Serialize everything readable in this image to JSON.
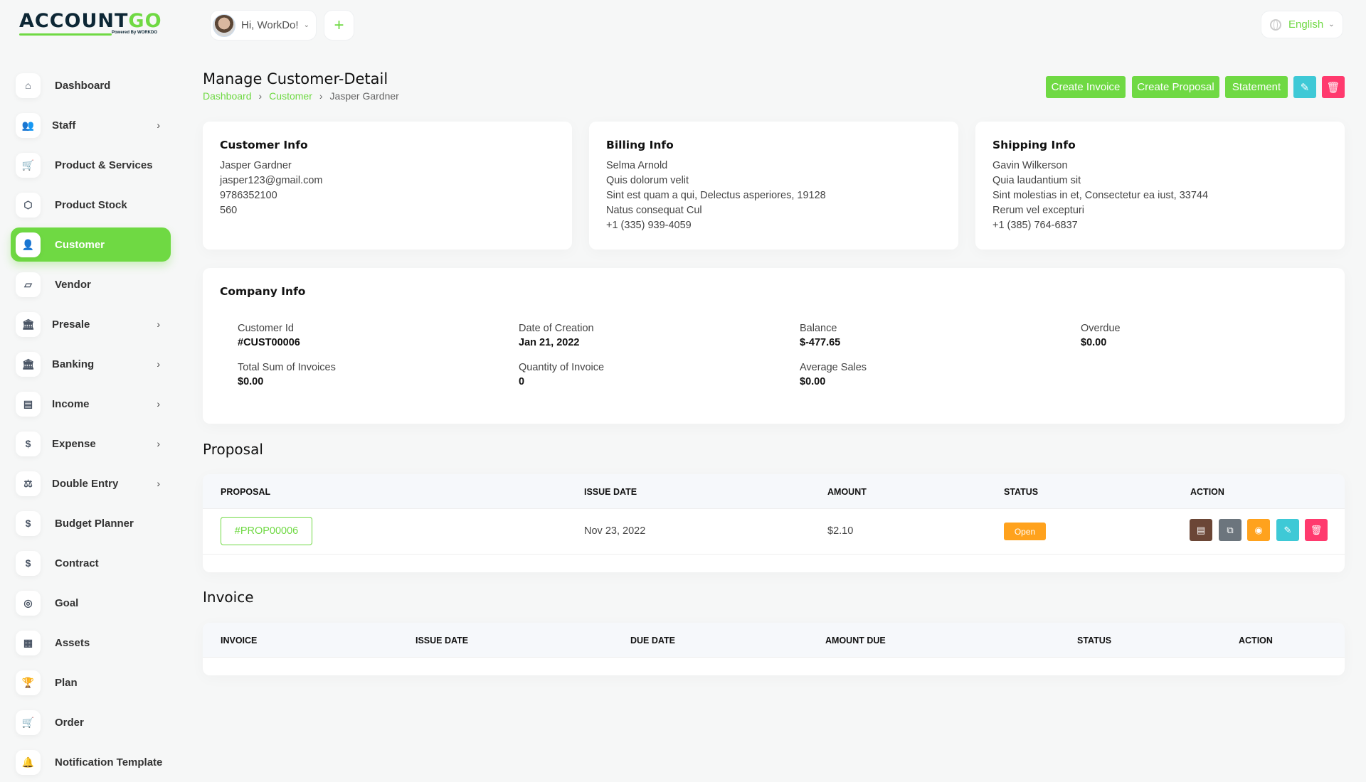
{
  "brand": {
    "logo_text": "ACCOUNTGO",
    "powered_by": "Powered By WORKDO"
  },
  "header": {
    "greeting": "Hi, WorkDo!",
    "language": "English"
  },
  "sidebar": {
    "items": [
      {
        "label": "Dashboard",
        "icon": "home-icon",
        "arrow": false
      },
      {
        "label": "Staff",
        "icon": "users-icon",
        "arrow": true
      },
      {
        "label": "Product & Services",
        "icon": "cart-icon",
        "arrow": false
      },
      {
        "label": "Product Stock",
        "icon": "box-icon",
        "arrow": false
      },
      {
        "label": "Customer",
        "icon": "user-plus-icon",
        "arrow": false,
        "active": true
      },
      {
        "label": "Vendor",
        "icon": "note-icon",
        "arrow": false
      },
      {
        "label": "Presale",
        "icon": "building-icon",
        "arrow": true
      },
      {
        "label": "Banking",
        "icon": "bank-icon",
        "arrow": true
      },
      {
        "label": "Income",
        "icon": "invoice-icon",
        "arrow": true
      },
      {
        "label": "Expense",
        "icon": "receipt-dollar-icon",
        "arrow": true
      },
      {
        "label": "Double Entry",
        "icon": "scale-icon",
        "arrow": true
      },
      {
        "label": "Budget Planner",
        "icon": "coins-icon",
        "arrow": false
      },
      {
        "label": "Contract",
        "icon": "coins-icon",
        "arrow": false
      },
      {
        "label": "Goal",
        "icon": "target-icon",
        "arrow": false
      },
      {
        "label": "Assets",
        "icon": "calculator-icon",
        "arrow": false
      },
      {
        "label": "Plan",
        "icon": "trophy-icon",
        "arrow": false
      },
      {
        "label": "Order",
        "icon": "cart-plus-icon",
        "arrow": false
      },
      {
        "label": "Notification Template",
        "icon": "bell-icon",
        "arrow": false
      }
    ]
  },
  "page": {
    "title": "Manage Customer-Detail",
    "breadcrumb": [
      "Dashboard",
      "Customer",
      "Jasper Gardner"
    ],
    "actions": {
      "create_invoice": "Create Invoice",
      "create_proposal": "Create Proposal",
      "statement": "Statement"
    }
  },
  "customer_info": {
    "title": "Customer Info",
    "lines": [
      "Jasper Gardner",
      "jasper123@gmail.com",
      "9786352100",
      "560"
    ]
  },
  "billing_info": {
    "title": "Billing Info",
    "lines": [
      "Selma Arnold",
      "Quis dolorum velit",
      "Sint est quam a qui, Delectus asperiores, 19128",
      "Natus consequat Cul",
      "+1 (335) 939-4059"
    ]
  },
  "shipping_info": {
    "title": "Shipping Info",
    "lines": [
      "Gavin Wilkerson",
      "Quia laudantium sit",
      "Sint molestias in et, Consectetur ea iust, 33744",
      "Rerum vel excepturi",
      "+1 (385) 764-6837"
    ]
  },
  "company_info": {
    "title": "Company Info",
    "stats": [
      {
        "label": "Customer Id",
        "value": "#CUST00006"
      },
      {
        "label": "Date of Creation",
        "value": "Jan 21, 2022"
      },
      {
        "label": "Balance",
        "value": "$-477.65"
      },
      {
        "label": "Overdue",
        "value": "$0.00"
      },
      {
        "label": "Total Sum of Invoices",
        "value": "$0.00"
      },
      {
        "label": "Quantity of Invoice",
        "value": "0"
      },
      {
        "label": "Average Sales",
        "value": "$0.00"
      }
    ]
  },
  "proposal": {
    "title": "Proposal",
    "columns": [
      "PROPOSAL",
      "ISSUE DATE",
      "AMOUNT",
      "STATUS",
      "ACTION"
    ],
    "rows": [
      {
        "id": "#PROP00006",
        "issue_date": "Nov 23, 2022",
        "amount": "$2.10",
        "status": "Open"
      }
    ]
  },
  "invoice": {
    "title": "Invoice",
    "columns": [
      "INVOICE",
      "ISSUE DATE",
      "DUE DATE",
      "AMOUNT DUE",
      "STATUS",
      "ACTION"
    ],
    "rows": []
  },
  "colors": {
    "accent": "#6fd943",
    "edit": "#3ec9d6",
    "delete": "#ff3a6e",
    "status_open": "#ffa21d",
    "convert": "#6b4636",
    "copy": "#6c757d"
  }
}
